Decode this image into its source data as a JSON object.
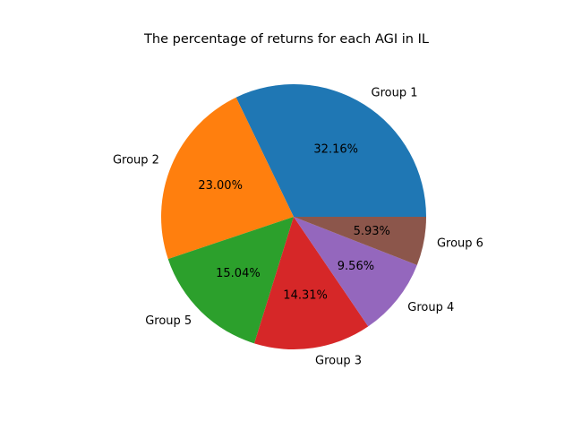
{
  "chart_data": {
    "type": "pie",
    "title": "The percentage of returns for each AGI in IL",
    "slices": [
      {
        "label": "Group 1",
        "value": 32.16,
        "display": "32.16%",
        "color": "#1f77b4"
      },
      {
        "label": "Group 2",
        "value": 23.0,
        "display": "23.00%",
        "color": "#ff7f0e"
      },
      {
        "label": "Group 5",
        "value": 15.04,
        "display": "15.04%",
        "color": "#2ca02c"
      },
      {
        "label": "Group 3",
        "value": 14.31,
        "display": "14.31%",
        "color": "#d62728"
      },
      {
        "label": "Group 4",
        "value": 9.56,
        "display": "9.56%",
        "color": "#9467bd"
      },
      {
        "label": "Group 6",
        "value": 5.93,
        "display": "5.93%",
        "color": "#8c564b"
      }
    ],
    "start_angle_deg": 0,
    "direction": "counterclockwise"
  }
}
